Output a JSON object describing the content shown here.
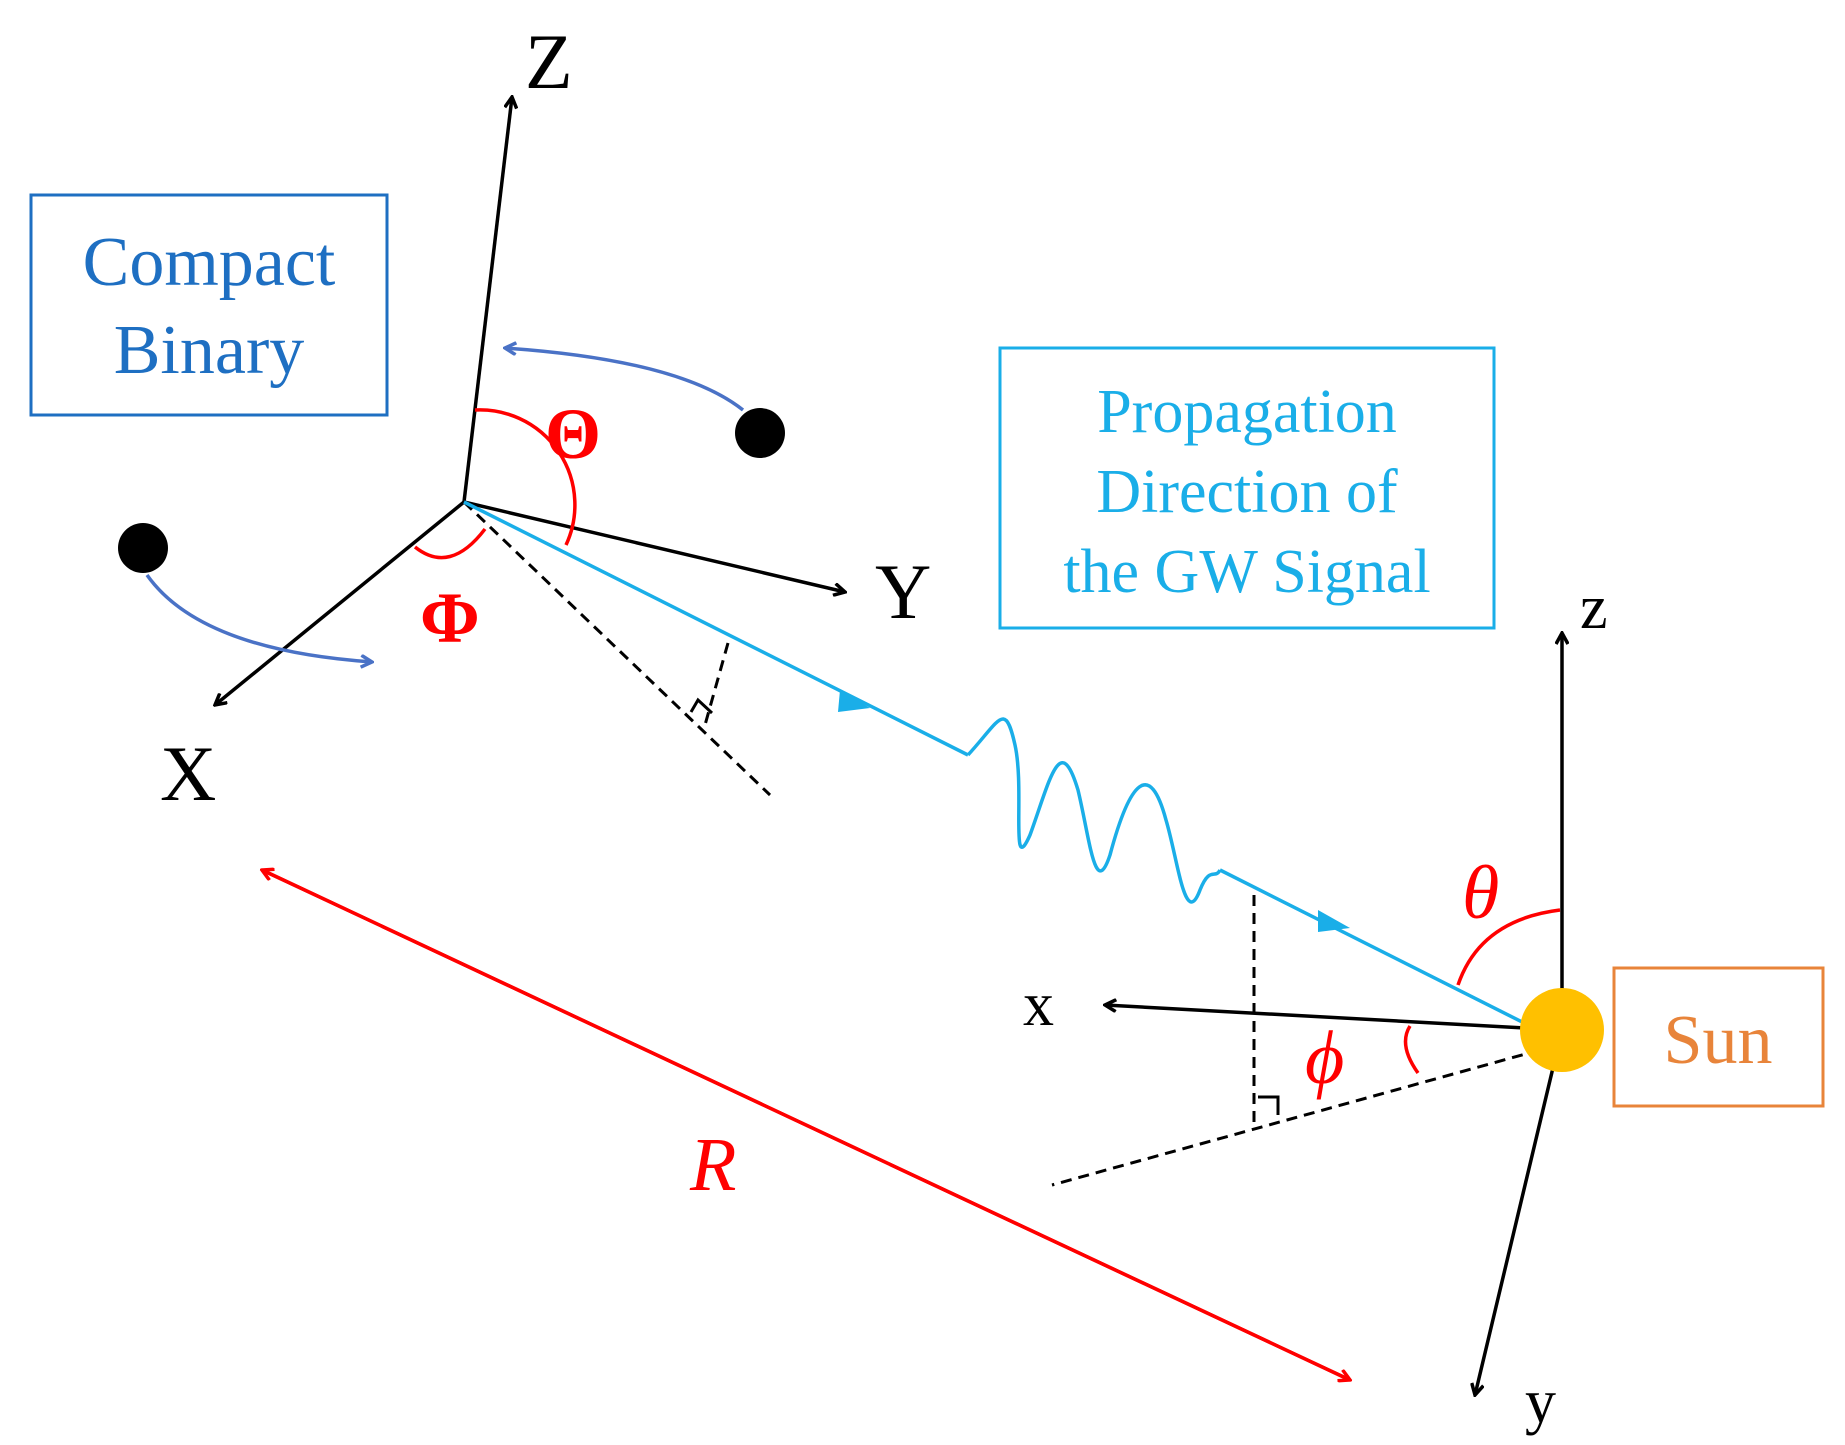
{
  "labels": {
    "compact_binary_line1": "Compact",
    "compact_binary_line2": "Binary",
    "propagation_line1": "Propagation",
    "propagation_line2": "Direction of",
    "propagation_line3": "the GW Signal",
    "sun": "Sun",
    "axis_X": "X",
    "axis_Y": "Y",
    "axis_Z": "Z",
    "axis_x": "x",
    "axis_y": "y",
    "axis_z": "z",
    "angle_Theta": "Θ",
    "angle_Phi": "Φ",
    "angle_theta": "θ",
    "angle_phi": "ϕ",
    "distance_R": "R"
  },
  "colors": {
    "binary_box": "#1e6fc2",
    "propagation_box": "#1aaee8",
    "sun_box": "#e8843a",
    "sun_fill": "#ffc000",
    "angle": "#ff0000",
    "orbit_arrow": "#4a72c6",
    "signal": "#1aaee8",
    "axes": "#000000"
  }
}
